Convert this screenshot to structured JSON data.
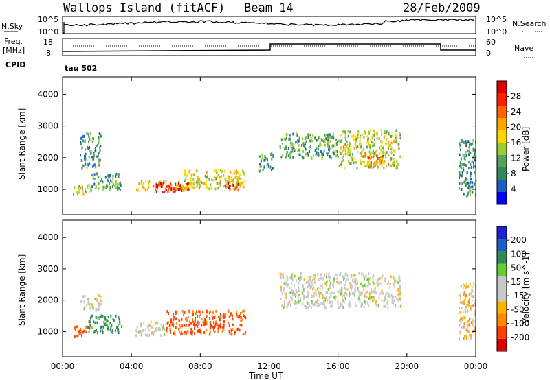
{
  "header": {
    "station": "Wallops Island (fitACF)",
    "beam": "Beam 14",
    "date": "28/Feb/2009"
  },
  "noise_panel": {
    "left_label": "N.Sky",
    "right_label": "N.Search",
    "left_ticks": [
      "10^5",
      "10^0"
    ],
    "right_ticks": [
      "10^5",
      "10^0"
    ]
  },
  "freq_panel": {
    "left_label_1": "Freq.",
    "left_label_2": "[MHz]",
    "right_label": "Nave",
    "left_ticks": [
      "18",
      "8"
    ],
    "right_ticks": [
      "60",
      "0"
    ],
    "cpid_label": "CPID",
    "cpid_value": "tau 502"
  },
  "colors": {
    "power_scale": [
      "#0000ff",
      "#1a5ec6",
      "#2e8b57",
      "#5aa05a",
      "#9acd32",
      "#ffd700",
      "#ffa500",
      "#ff6400",
      "#ff2000",
      "#e00000"
    ],
    "velocity_scale": [
      "#e00000",
      "#ff4000",
      "#ff8c00",
      "#ffb400",
      "#c8c8c8",
      "#c8c8c8",
      "#66cc33",
      "#2e8b57",
      "#1a5ec6",
      "#2020d0"
    ]
  },
  "chart_data": [
    {
      "type": "heatmap",
      "name": "Power",
      "ylabel": "Slant Range [km]",
      "yticks": [
        "4000",
        "3000",
        "2000",
        "1000"
      ],
      "ylim": [
        200,
        4550
      ],
      "xlim": [
        "00:00",
        "24:00"
      ],
      "colorbar_label": "Power [dB]",
      "colorbar_ticks": [
        "28",
        "24",
        "20",
        "16",
        "12",
        "8",
        "4"
      ],
      "echo_regions": [
        {
          "t_start": 0.6,
          "t_end": 1.6,
          "r_min": 850,
          "r_max": 1200,
          "power": 14
        },
        {
          "t_start": 1.0,
          "t_end": 2.2,
          "r_min": 1700,
          "r_max": 2800,
          "power": 8
        },
        {
          "t_start": 1.6,
          "t_end": 3.4,
          "r_min": 1000,
          "r_max": 1550,
          "power": 10
        },
        {
          "t_start": 4.2,
          "t_end": 8.0,
          "r_min": 1000,
          "r_max": 1300,
          "power": 18
        },
        {
          "t_start": 5.4,
          "t_end": 7.4,
          "r_min": 950,
          "r_max": 1250,
          "power": 28
        },
        {
          "t_start": 7.0,
          "t_end": 10.6,
          "r_min": 1050,
          "r_max": 1650,
          "power": 16
        },
        {
          "t_start": 9.4,
          "t_end": 10.2,
          "r_min": 1000,
          "r_max": 1250,
          "power": 26
        },
        {
          "t_start": 11.4,
          "t_end": 12.2,
          "r_min": 1600,
          "r_max": 2200,
          "power": 8
        },
        {
          "t_start": 12.6,
          "t_end": 16.0,
          "r_min": 2000,
          "r_max": 2800,
          "power": 10
        },
        {
          "t_start": 16.0,
          "t_end": 19.6,
          "r_min": 1700,
          "r_max": 2900,
          "power": 14
        },
        {
          "t_start": 17.6,
          "t_end": 18.6,
          "r_min": 1700,
          "r_max": 2100,
          "power": 22
        },
        {
          "t_start": 23.0,
          "t_end": 24.0,
          "r_min": 800,
          "r_max": 2600,
          "power": 8
        }
      ]
    },
    {
      "type": "heatmap",
      "name": "Velocity",
      "ylabel": "Slant Range [km]",
      "yticks": [
        "4000",
        "3000",
        "2000",
        "1000"
      ],
      "ylim": [
        200,
        4550
      ],
      "xlabel": "Time UT",
      "xticks": [
        "00:00",
        "04:00",
        "08:00",
        "12:00",
        "16:00",
        "20:00",
        "00:00"
      ],
      "xlim": [
        "00:00",
        "24:00"
      ],
      "colorbar_label": "Velocity [m s^-1]",
      "colorbar_ticks": [
        "200",
        "100",
        "50",
        "15",
        "-15",
        "-50",
        "-100",
        "-200"
      ],
      "echo_regions": [
        {
          "t_start": 0.6,
          "t_end": 1.6,
          "r_min": 850,
          "r_max": 1200,
          "velocity": -60
        },
        {
          "t_start": 1.0,
          "t_end": 2.2,
          "r_min": 1700,
          "r_max": 2200,
          "velocity": 0
        },
        {
          "t_start": 1.4,
          "t_end": 3.4,
          "r_min": 1000,
          "r_max": 1550,
          "velocity": 60
        },
        {
          "t_start": 4.2,
          "t_end": 6.0,
          "r_min": 900,
          "r_max": 1350,
          "velocity": 0
        },
        {
          "t_start": 6.0,
          "t_end": 10.6,
          "r_min": 950,
          "r_max": 1700,
          "velocity": -60
        },
        {
          "t_start": 12.6,
          "t_end": 19.6,
          "r_min": 1800,
          "r_max": 2900,
          "velocity": 0
        },
        {
          "t_start": 23.0,
          "t_end": 24.0,
          "r_min": 800,
          "r_max": 2600,
          "velocity": -20
        }
      ]
    }
  ]
}
